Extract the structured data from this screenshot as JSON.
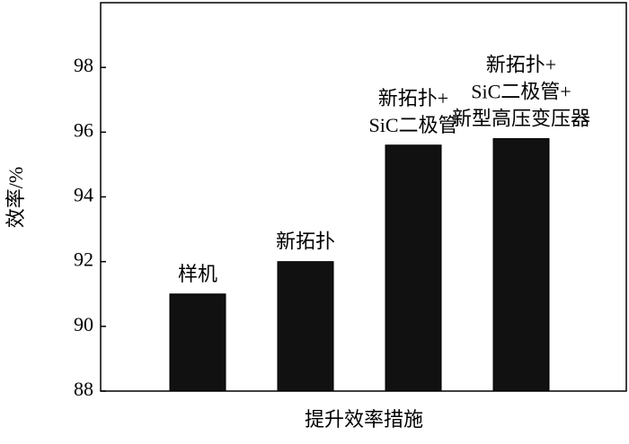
{
  "chart_data": {
    "type": "bar",
    "xlabel": "提升效率措施",
    "ylabel": "效率/%",
    "categories": [
      [
        "样机"
      ],
      [
        "新拓扑"
      ],
      [
        "新拓扑+",
        "SiC二极管"
      ],
      [
        "新拓扑+",
        "SiC二极管+",
        "新型高压变压器"
      ]
    ],
    "values": [
      91.0,
      92.0,
      95.6,
      95.8
    ],
    "color": "#111111",
    "ylim": [
      88,
      100
    ],
    "yticks": [
      88,
      90,
      92,
      94,
      96,
      98
    ]
  }
}
